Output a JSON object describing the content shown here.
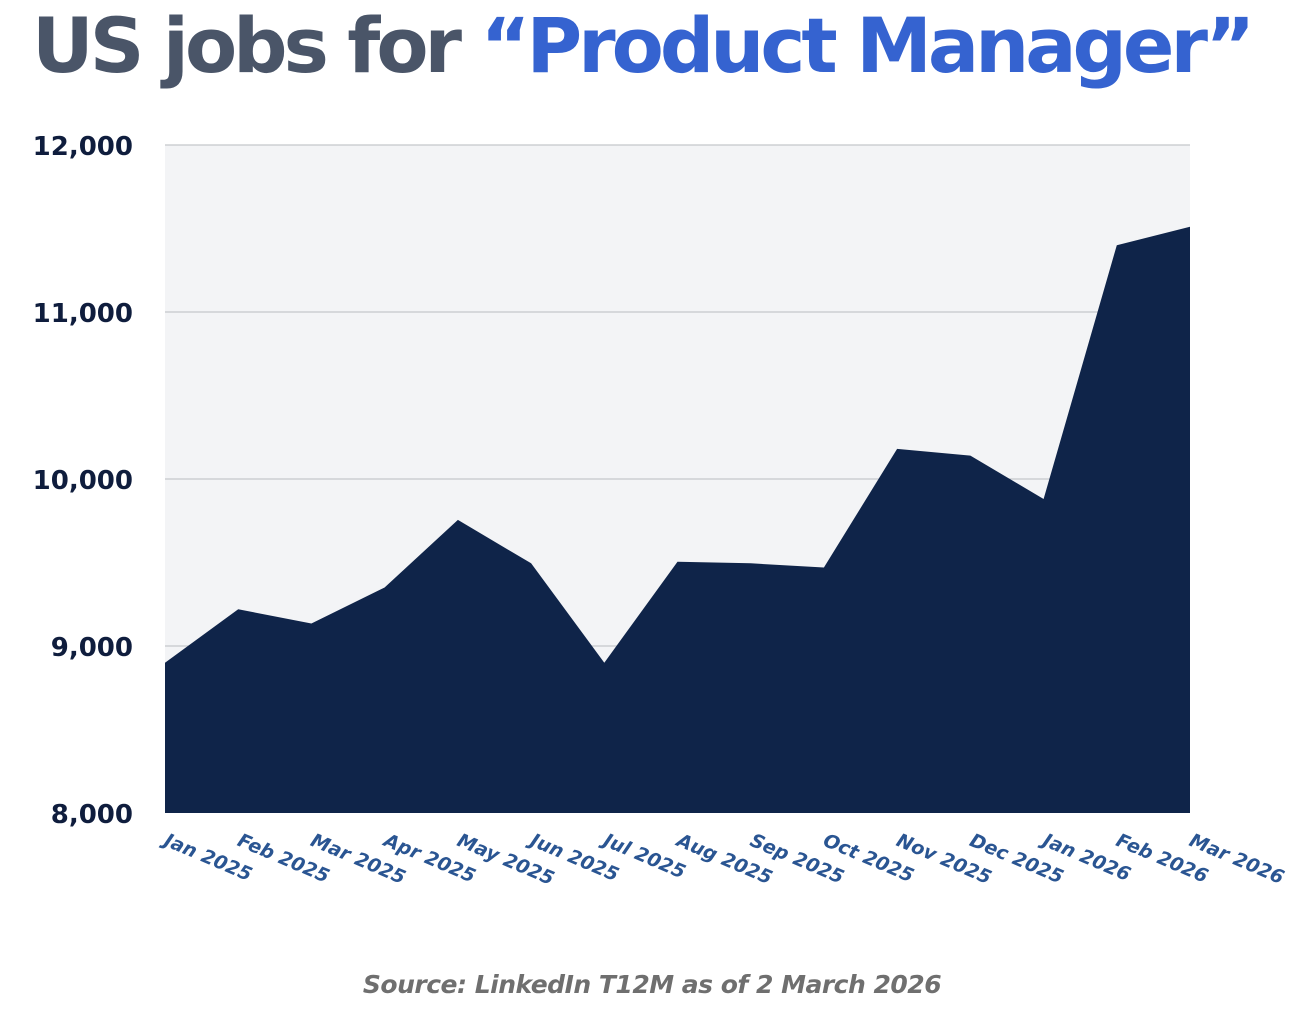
{
  "title": {
    "prefix": "US jobs for ",
    "highlight": "“Product Manager”",
    "main_color": "#4a5568",
    "accent_color": "#3563d0"
  },
  "source": "Source: LinkedIn T12M as of 2 March 2026",
  "chart_data": {
    "type": "area",
    "title": "US jobs for “Product Manager”",
    "xlabel": "",
    "ylabel": "",
    "categories": [
      "Jan 2025",
      "Feb 2025",
      "Mar 2025",
      "Apr 2025",
      "May 2025",
      "Jun 2025",
      "Jul 2025",
      "Aug 2025",
      "Sep 2025",
      "Oct 2025",
      "Nov 2025",
      "Dec 2025",
      "Jan 2026",
      "Feb 2026",
      "Mar 2026"
    ],
    "series": [
      {
        "name": "US jobs",
        "values": [
          8900,
          9220,
          9135,
          9350,
          9755,
          9495,
          8900,
          9505,
          9495,
          9470,
          10180,
          10140,
          9880,
          11400,
          11510
        ]
      }
    ],
    "ylim": [
      8000,
      12000
    ],
    "yticks": [
      8000,
      9000,
      10000,
      11000,
      12000
    ],
    "ytick_labels": [
      "8,000",
      "9,000",
      "10,000",
      "11,000",
      "12,000"
    ],
    "grid": true,
    "legend": "none",
    "colors": {
      "fill": "#0f2449",
      "plot_bg": "#f3f4f6",
      "grid": "#c4c6cb",
      "ytick": "#0f1d3d",
      "xtick": "#2a5592"
    }
  }
}
